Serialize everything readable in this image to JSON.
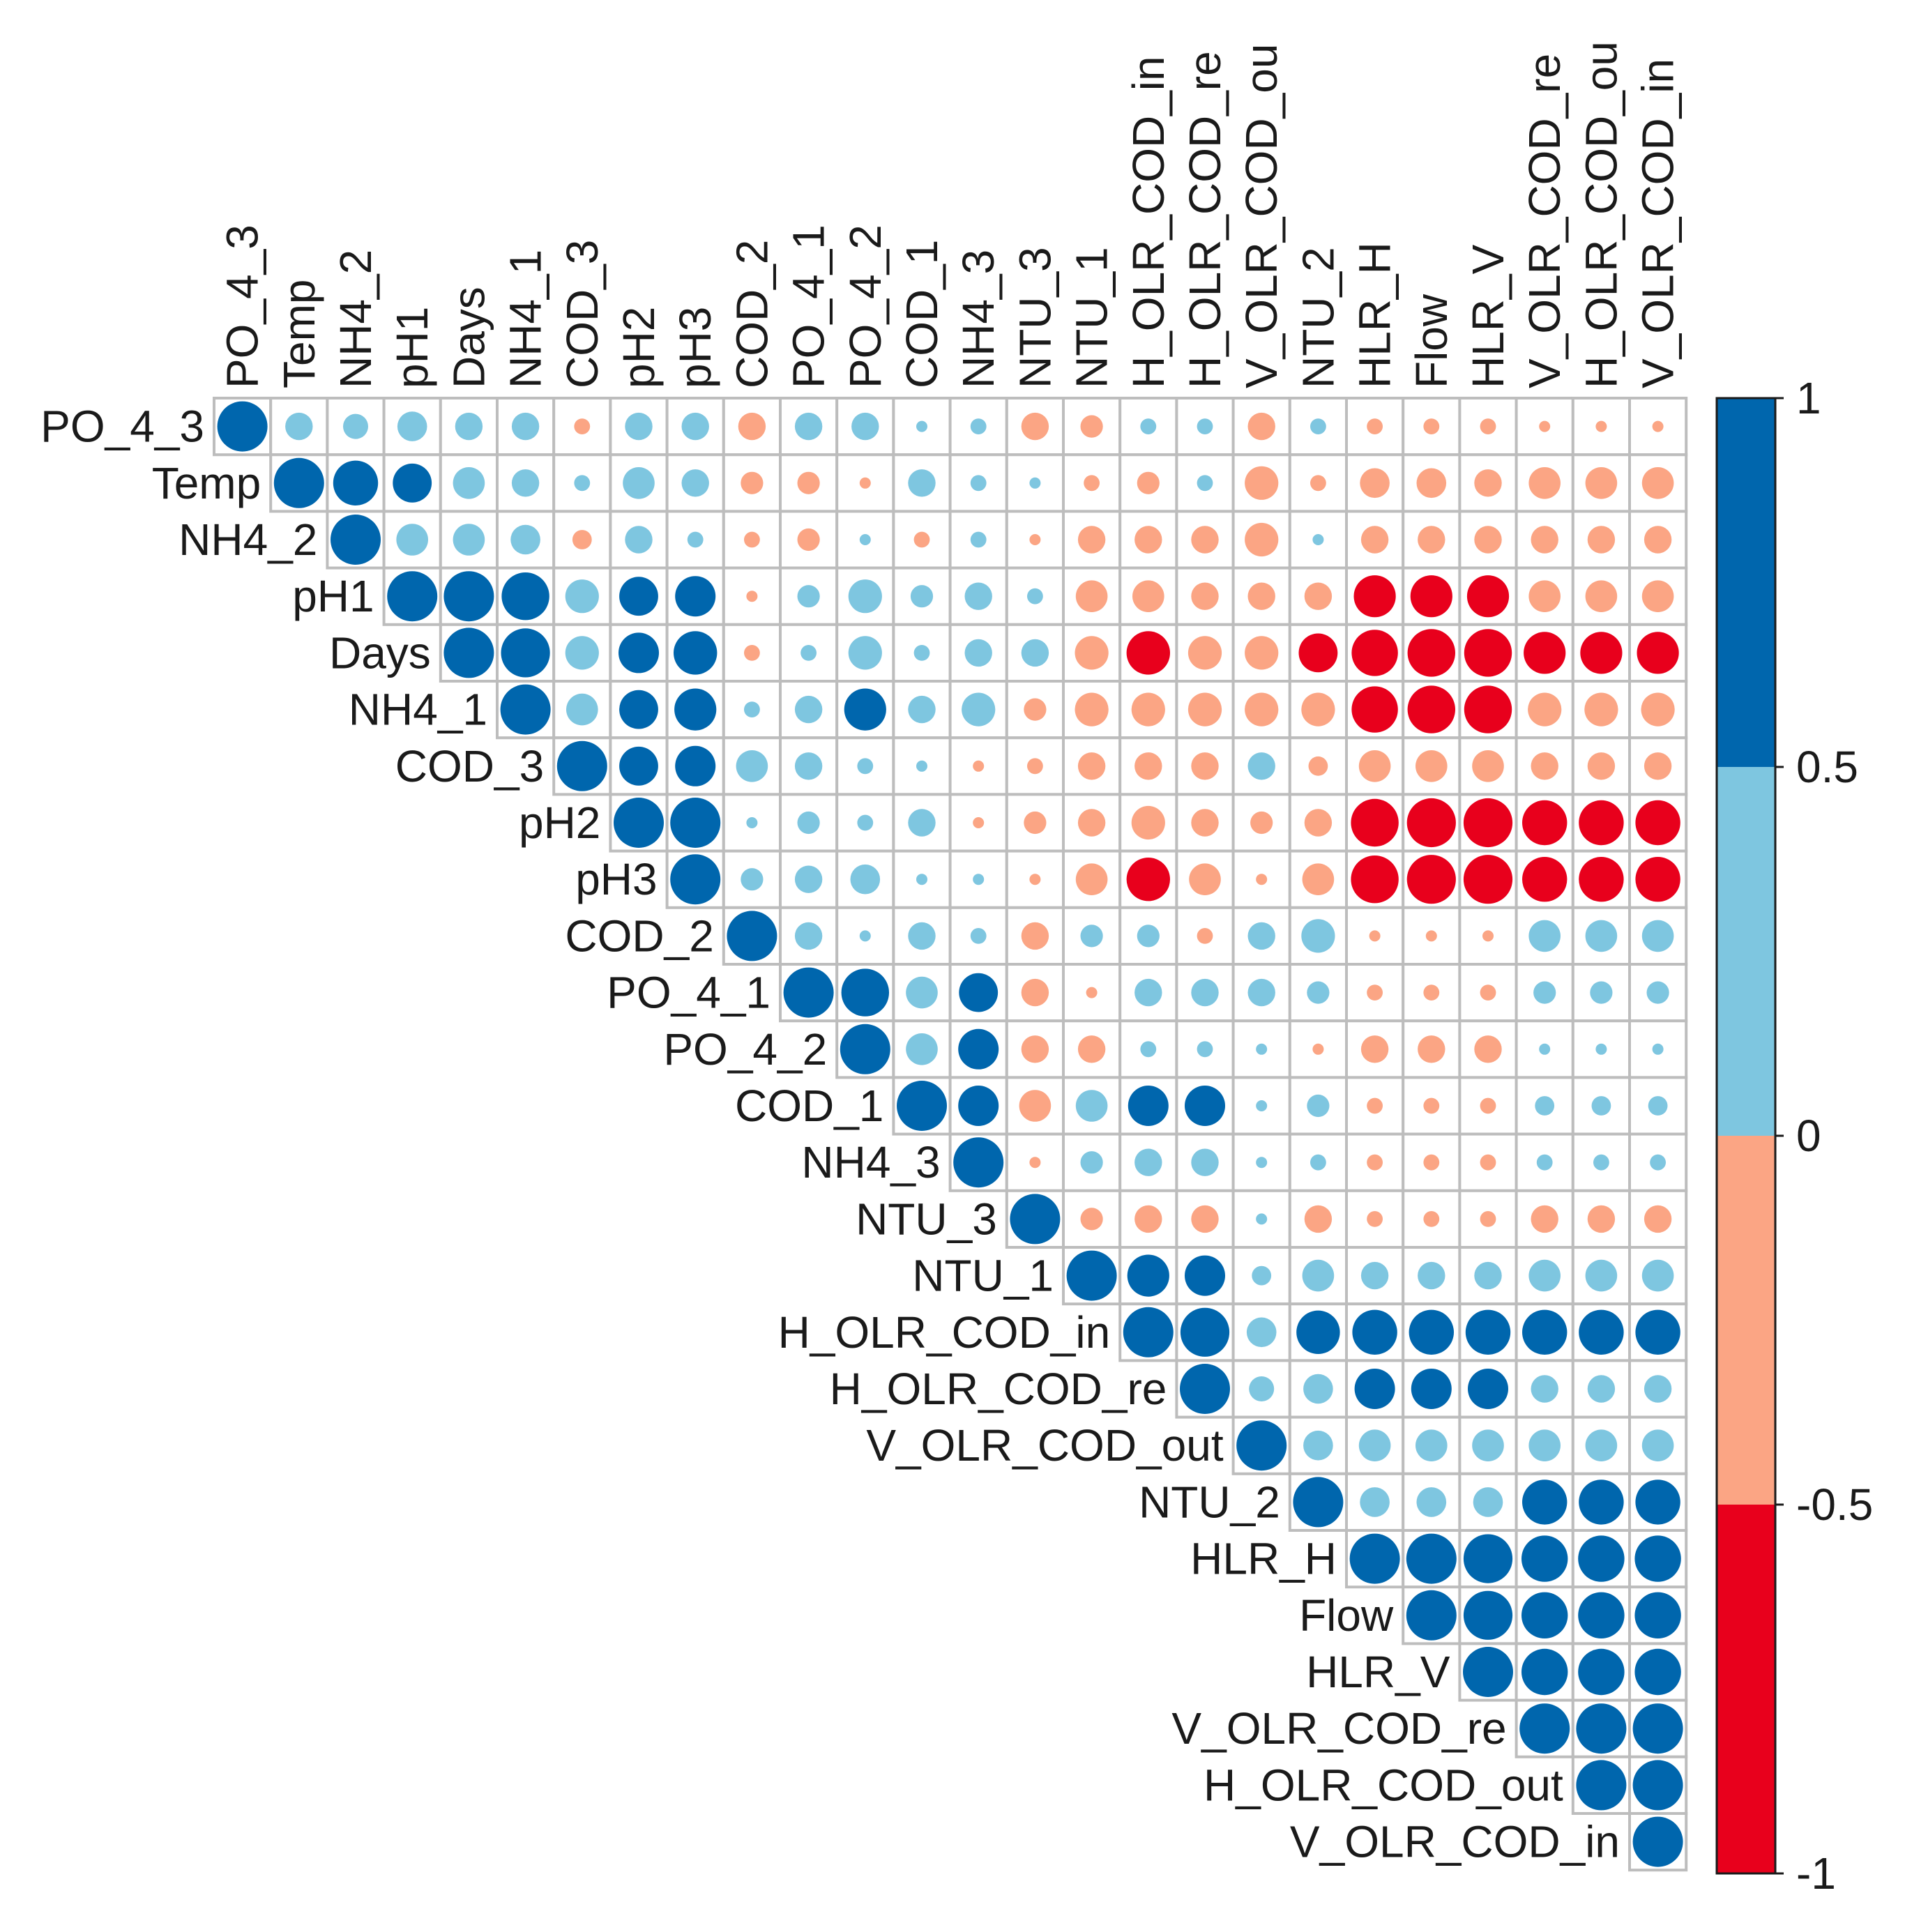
{
  "chart_data": {
    "type": "heatmap",
    "subtype": "correlation-circle-upper-triangle",
    "title": "",
    "variables": [
      "PO_4_3",
      "Temp",
      "NH4_2",
      "pH1",
      "Days",
      "NH4_1",
      "COD_3",
      "pH2",
      "pH3",
      "COD_2",
      "PO_4_1",
      "PO_4_2",
      "COD_1",
      "NH4_3",
      "NTU_3",
      "NTU_1",
      "H_OLR_COD_in",
      "H_OLR_COD_re",
      "V_OLR_COD_out",
      "NTU_2",
      "HLR_H",
      "Flow",
      "HLR_V",
      "V_OLR_COD_re",
      "H_OLR_COD_out",
      "V_OLR_COD_in"
    ],
    "column_labels_as_shown": [
      "PO_4_3",
      "Temp",
      "NH4_2",
      "pH1",
      "Days",
      "NH4_1",
      "COD_3",
      "pH2",
      "pH3",
      "COD_2",
      "PO_4_1",
      "PO_4_2",
      "COD_1",
      "NH4_3",
      "NTU_3",
      "NTU_1",
      "H_OLR_COD_in",
      "H_OLR_COD_re",
      "V_OLR_COD_ou",
      "NTU_2",
      "HLR_H",
      "Flow",
      "HLR_V",
      "V_OLR_COD_re",
      "H_OLR_COD_ou",
      "V_OLR_COD_in"
    ],
    "matrix_upper": [
      [
        1,
        0.3,
        0.25,
        0.35,
        0.3,
        0.3,
        -0.1,
        0.3,
        0.3,
        -0.3,
        0.3,
        0.3,
        0.05,
        0.1,
        -0.3,
        -0.2,
        0.1,
        0.1,
        -0.3,
        0.1,
        -0.1,
        -0.1,
        -0.1,
        -0.05,
        -0.05,
        -0.05
      ],
      [
        1,
        0.8,
        0.6,
        0.4,
        0.3,
        0.1,
        0.4,
        0.3,
        -0.2,
        -0.2,
        -0.05,
        0.3,
        0.1,
        0.05,
        -0.1,
        -0.2,
        0.1,
        -0.45,
        -0.1,
        -0.35,
        -0.35,
        -0.3,
        -0.4,
        -0.4,
        -0.4
      ],
      [
        1,
        0.4,
        0.4,
        0.35,
        -0.15,
        0.3,
        0.1,
        -0.1,
        -0.2,
        0.05,
        -0.1,
        0.1,
        -0.05,
        -0.3,
        -0.3,
        -0.3,
        -0.45,
        0.05,
        -0.3,
        -0.3,
        -0.3,
        -0.3,
        -0.3,
        -0.3
      ],
      [
        1,
        1.0,
        0.9,
        0.45,
        0.6,
        0.65,
        -0.05,
        0.2,
        0.45,
        0.2,
        0.3,
        0.1,
        -0.4,
        -0.4,
        -0.3,
        -0.3,
        -0.3,
        -0.7,
        -0.7,
        -0.7,
        -0.4,
        -0.4,
        -0.4
      ],
      [
        1,
        0.95,
        0.45,
        0.65,
        0.75,
        -0.1,
        0.1,
        0.45,
        0.1,
        0.3,
        0.3,
        -0.45,
        -0.75,
        -0.45,
        -0.45,
        -0.6,
        -0.85,
        -0.9,
        -0.9,
        -0.7,
        -0.7,
        -0.7
      ],
      [
        1,
        0.4,
        0.6,
        0.7,
        0.1,
        0.3,
        0.7,
        0.3,
        0.45,
        -0.2,
        -0.45,
        -0.45,
        -0.45,
        -0.45,
        -0.45,
        -0.85,
        -0.9,
        -0.9,
        -0.45,
        -0.45,
        -0.45
      ],
      [
        1,
        0.6,
        0.65,
        0.4,
        0.3,
        0.1,
        0.05,
        -0.05,
        -0.1,
        -0.3,
        -0.3,
        -0.3,
        0.3,
        -0.15,
        -0.4,
        -0.4,
        -0.4,
        -0.3,
        -0.3,
        -0.3
      ],
      [
        1,
        1.0,
        0.05,
        0.2,
        0.1,
        0.3,
        -0.05,
        -0.2,
        -0.3,
        -0.45,
        -0.3,
        -0.2,
        -0.3,
        -0.9,
        -0.95,
        -0.95,
        -0.8,
        -0.8,
        -0.8
      ],
      [
        1,
        0.2,
        0.3,
        0.35,
        0.05,
        0.05,
        -0.05,
        -0.4,
        -0.75,
        -0.4,
        -0.05,
        -0.4,
        -0.9,
        -0.95,
        -0.95,
        -0.8,
        -0.8,
        -0.8
      ],
      [
        1,
        0.3,
        0.05,
        0.3,
        0.1,
        -0.3,
        0.2,
        0.2,
        -0.1,
        0.3,
        0.45,
        -0.05,
        -0.05,
        -0.05,
        0.4,
        0.4,
        0.4
      ],
      [
        1,
        0.9,
        0.4,
        0.6,
        -0.3,
        -0.05,
        0.3,
        0.3,
        0.3,
        0.2,
        -0.1,
        -0.1,
        -0.1,
        0.2,
        0.2,
        0.2
      ],
      [
        1,
        0.4,
        0.65,
        -0.3,
        -0.3,
        0.1,
        0.1,
        0.05,
        -0.05,
        -0.3,
        -0.3,
        -0.3,
        0.05,
        0.05,
        0.05
      ],
      [
        1,
        0.65,
        -0.4,
        0.4,
        0.65,
        0.65,
        0.05,
        0.2,
        -0.1,
        -0.1,
        -0.1,
        0.15,
        0.15,
        0.15
      ],
      [
        1,
        -0.05,
        0.2,
        0.3,
        0.3,
        0.05,
        0.1,
        -0.1,
        -0.1,
        -0.1,
        0.1,
        0.1,
        0.1
      ],
      [
        1,
        -0.2,
        -0.3,
        -0.3,
        0.05,
        -0.3,
        -0.1,
        -0.1,
        -0.1,
        -0.3,
        -0.3,
        -0.3
      ],
      [
        1,
        0.7,
        0.65,
        0.15,
        0.4,
        0.3,
        0.3,
        0.3,
        0.4,
        0.4,
        0.4
      ],
      [
        1,
        0.95,
        0.35,
        0.75,
        0.8,
        0.8,
        0.8,
        0.8,
        0.8,
        0.8
      ],
      [
        1,
        0.25,
        0.35,
        0.65,
        0.65,
        0.65,
        0.3,
        0.3,
        0.3
      ],
      [
        1,
        0.35,
        0.4,
        0.4,
        0.4,
        0.4,
        0.4,
        0.4
      ],
      [
        1,
        0.35,
        0.35,
        0.35,
        0.8,
        0.8,
        0.8
      ],
      [
        1,
        1.0,
        0.95,
        0.85,
        0.85,
        0.85
      ],
      [
        1,
        0.95,
        0.85,
        0.85,
        0.85
      ],
      [
        1,
        0.85,
        0.85,
        0.85
      ],
      [
        1,
        1.0,
        1.0
      ],
      [
        1,
        1.0
      ],
      [
        1
      ]
    ],
    "color_scale": {
      "breaks": [
        -1,
        -0.5,
        0,
        0.5,
        1
      ],
      "colors": [
        "#e8001c",
        "#fba584",
        "#7ec6e0",
        "#0066ad"
      ]
    },
    "legend": {
      "position": "right",
      "tick_labels": [
        "1",
        "0.5",
        "0",
        "-0.5",
        "-1"
      ]
    },
    "grid": true
  }
}
